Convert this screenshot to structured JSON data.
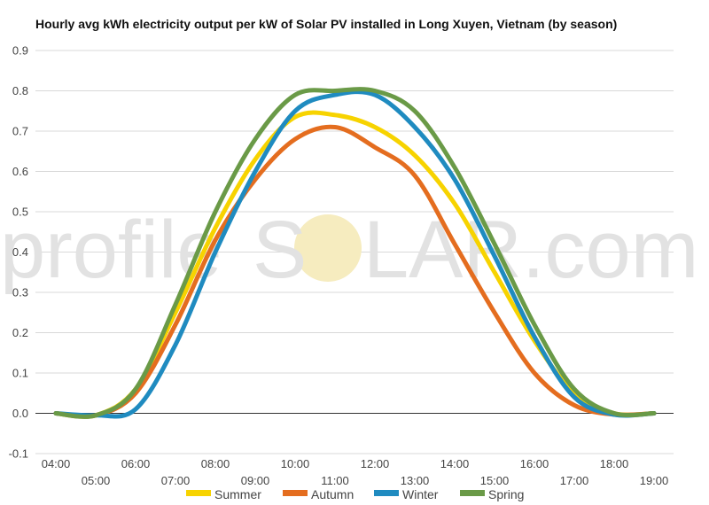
{
  "chart_data": {
    "type": "line",
    "title": "Hourly avg kWh electricity output per kW of Solar PV installed in Long Xuyen, Vietnam (by season)",
    "xlabel": "",
    "ylabel": "",
    "x_ticks": [
      "04:00",
      "05:00",
      "06:00",
      "07:00",
      "08:00",
      "09:00",
      "10:00",
      "11:00",
      "12:00",
      "13:00",
      "14:00",
      "15:00",
      "16:00",
      "17:00",
      "18:00",
      "19:00"
    ],
    "y_ticks": [
      "0.9",
      "0.8",
      "0.7",
      "0.6",
      "0.5",
      "0.4",
      "0.3",
      "0.2",
      "0.1",
      "0.0",
      "-0.1"
    ],
    "ylim": [
      -0.1,
      0.9
    ],
    "grid": true,
    "legend_position": "bottom",
    "series": [
      {
        "name": "Summer",
        "color": "#f7d300",
        "values": [
          0.0,
          -0.005,
          0.06,
          0.25,
          0.46,
          0.63,
          0.735,
          0.74,
          0.71,
          0.64,
          0.52,
          0.35,
          0.18,
          0.05,
          0.0,
          0.0
        ]
      },
      {
        "name": "Autumn",
        "color": "#e46d1f",
        "values": [
          0.0,
          -0.005,
          0.05,
          0.22,
          0.43,
          0.58,
          0.68,
          0.71,
          0.66,
          0.59,
          0.42,
          0.25,
          0.1,
          0.02,
          -0.003,
          0.0
        ]
      },
      {
        "name": "Winter",
        "color": "#1f8bc0",
        "values": [
          0.0,
          -0.005,
          0.01,
          0.17,
          0.4,
          0.6,
          0.75,
          0.79,
          0.79,
          0.71,
          0.58,
          0.39,
          0.19,
          0.04,
          -0.003,
          0.0
        ]
      },
      {
        "name": "Spring",
        "color": "#6a9a47",
        "values": [
          0.0,
          -0.005,
          0.06,
          0.27,
          0.5,
          0.68,
          0.79,
          0.8,
          0.8,
          0.75,
          0.61,
          0.42,
          0.22,
          0.06,
          0.0,
          0.0
        ]
      }
    ]
  },
  "watermark": {
    "left": "profile",
    "center": "O",
    "right": "LAR.com",
    "s_letter": "S"
  }
}
